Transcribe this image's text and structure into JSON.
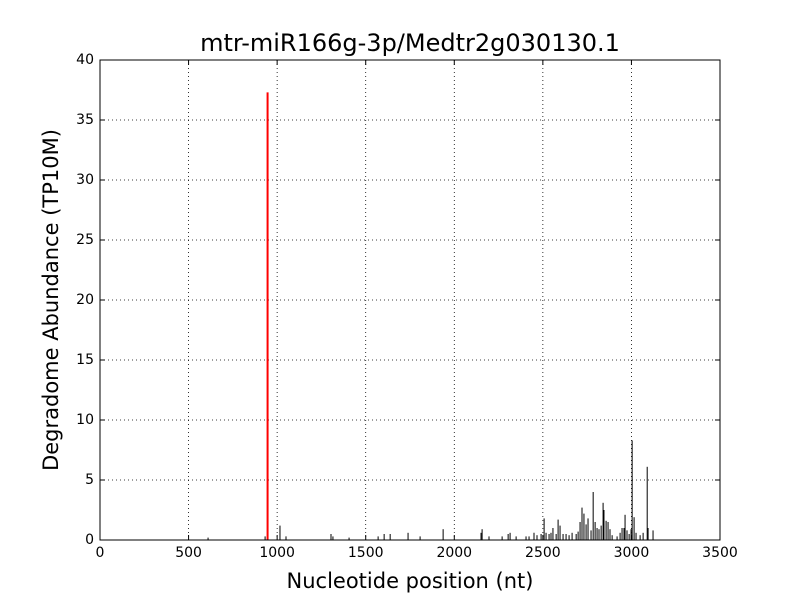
{
  "chart_data": {
    "type": "stem",
    "title": "mtr-miR166g-3p/Medtr2g030130.1",
    "x_label": "Nucleotide position (nt)",
    "y_label": "Degradome Abundance (TP10M)",
    "xlim": [
      0,
      3500
    ],
    "xticks": [
      0,
      500,
      1000,
      1500,
      2000,
      2500,
      3000,
      3500
    ],
    "ylim": [
      0,
      40
    ],
    "yticks": [
      0,
      5,
      10,
      15,
      20,
      25,
      30,
      35,
      40
    ],
    "grid": true,
    "series": [
      {
        "color": "#000000",
        "x": [
          610,
          932,
          1016,
          1050,
          1304,
          1315,
          1406,
          1570,
          1604,
          1638,
          1739,
          1807,
          1937,
          2151,
          2157,
          2196,
          2270,
          2304,
          2315,
          2349,
          2405,
          2422,
          2450,
          2467,
          2490,
          2507,
          2518,
          2535,
          2546,
          2557,
          2575,
          2586,
          2597,
          2614,
          2631,
          2648,
          2665,
          2688,
          2699,
          2710,
          2721,
          2732,
          2744,
          2755,
          2772,
          2784,
          2795,
          2806,
          2817,
          2829,
          2840,
          2845,
          2857,
          2868,
          2879,
          2891,
          2919,
          2936,
          2947,
          2958,
          2964,
          2975,
          2987,
          2998,
          3004,
          3015,
          3026,
          3049,
          3066,
          3089,
          3094,
          3122
        ],
        "values": [
          0.2,
          0.3,
          1.2,
          0.3,
          0.5,
          0.3,
          0.2,
          0.3,
          0.5,
          0.5,
          0.6,
          0.3,
          0.9,
          0.6,
          0.9,
          0.3,
          0.3,
          0.5,
          0.6,
          0.3,
          0.3,
          0.3,
          0.6,
          0.4,
          0.5,
          1.8,
          0.6,
          0.5,
          0.6,
          1.0,
          0.5,
          1.7,
          1.2,
          0.5,
          0.5,
          0.4,
          0.6,
          0.5,
          0.7,
          1.5,
          2.7,
          2.2,
          1.3,
          1.8,
          0.8,
          4.0,
          1.5,
          1.0,
          0.9,
          1.2,
          3.1,
          2.5,
          1.6,
          1.5,
          0.9,
          0.4,
          0.3,
          0.6,
          1.0,
          1.0,
          2.1,
          0.8,
          0.5,
          0.9,
          8.3,
          1.9,
          0.6,
          0.4,
          0.6,
          6.1,
          1.0,
          0.8
        ]
      },
      {
        "color": "#ff0000",
        "x": [
          946
        ],
        "values": [
          37.3
        ]
      }
    ]
  }
}
